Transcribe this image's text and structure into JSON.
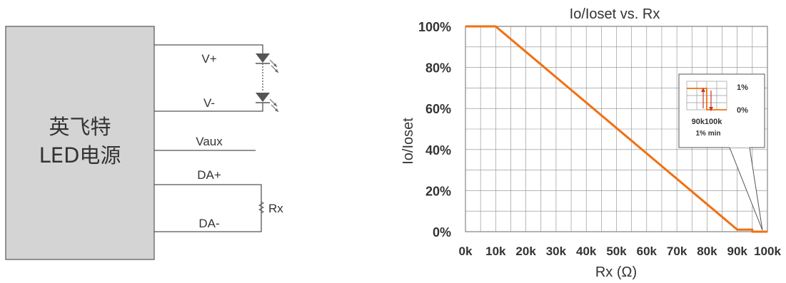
{
  "circuit": {
    "box_line1": "英飞特",
    "box_line2": "LED电源",
    "labels": {
      "vplus": "V+",
      "vminus": "V-",
      "vaux": "Vaux",
      "daplus": "DA+",
      "daminus": "DA-",
      "rx": "Rx"
    }
  },
  "chart_data": {
    "type": "line",
    "title": "Io/Ioset vs. Rx",
    "xlabel": "Rx (Ω)",
    "ylabel": "Io/Ioset",
    "x_ticks": [
      "0k",
      "10k",
      "20k",
      "30k",
      "40k",
      "50k",
      "60k",
      "70k",
      "80k",
      "90k",
      "100k"
    ],
    "y_ticks": [
      "0%",
      "20%",
      "40%",
      "60%",
      "80%",
      "100%"
    ],
    "xlim": [
      0,
      100
    ],
    "ylim": [
      0,
      100
    ],
    "series": [
      {
        "x": [
          0,
          10,
          90,
          95,
          95,
          100
        ],
        "y": [
          100,
          100,
          1,
          1,
          0,
          0
        ]
      }
    ],
    "line_color": "#f07010",
    "grid": true,
    "inset": {
      "label_1pct": "1%",
      "label_0pct": "0%",
      "label_x": "90k100k",
      "label_min": "1% min"
    }
  }
}
